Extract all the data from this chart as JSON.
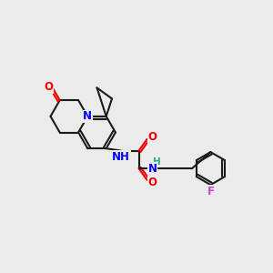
{
  "bg_color": "#ebebeb",
  "bond_color": "#1a1a1a",
  "bond_width": 1.5,
  "atom_colors": {
    "N": "#0000ee",
    "O": "#ee0000",
    "F": "#cc44cc",
    "H": "#2aaa8a",
    "C": "#1a1a1a"
  },
  "font_size": 8.5
}
